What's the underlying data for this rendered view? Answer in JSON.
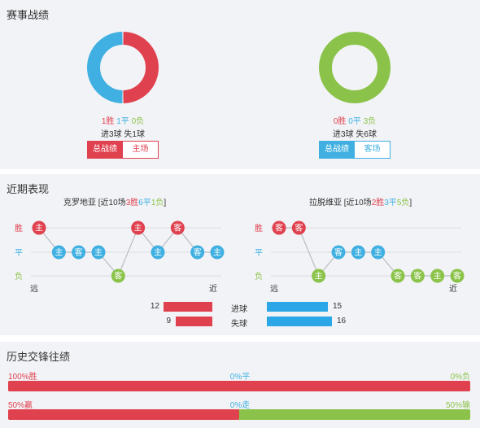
{
  "colors": {
    "red": "#e0414e",
    "blue": "#3fb0e1",
    "green": "#8bc34a",
    "bg": "#f2f3f6"
  },
  "record": {
    "title": "赛事战绩",
    "left": {
      "win": "1胜",
      "draw": "1平",
      "loss": "0负",
      "goals": "进3球 失1球",
      "tabs": [
        "总战绩",
        "主场"
      ],
      "donut": {
        "win": 1,
        "draw": 1,
        "loss": 0
      }
    },
    "right": {
      "win": "0胜",
      "draw": "0平",
      "loss": "3负",
      "goals": "进3球 失6球",
      "tabs": [
        "总战绩",
        "客场"
      ],
      "donut": {
        "win": 0,
        "draw": 0,
        "loss": 3
      }
    }
  },
  "recent": {
    "title": "近期表现",
    "left": {
      "team": "克罗地亚",
      "bracket_open": " [近10场",
      "wins": "3胜",
      "draws": "6平",
      "losses": "1负",
      "bracket_close": "]",
      "row_labels": [
        "胜",
        "平",
        "负"
      ],
      "far": "远",
      "near": "近",
      "points": [
        {
          "label": "主",
          "result": "win"
        },
        {
          "label": "主",
          "result": "draw"
        },
        {
          "label": "客",
          "result": "draw"
        },
        {
          "label": "主",
          "result": "draw"
        },
        {
          "label": "客",
          "result": "loss"
        },
        {
          "label": "主",
          "result": "win"
        },
        {
          "label": "主",
          "result": "draw"
        },
        {
          "label": "客",
          "result": "win"
        },
        {
          "label": "客",
          "result": "draw"
        },
        {
          "label": "主",
          "result": "draw"
        }
      ]
    },
    "right": {
      "team": "拉脱维亚",
      "bracket_open": " [近10场",
      "wins": "2胜",
      "draws": "3平",
      "losses": "5负",
      "bracket_close": "]",
      "row_labels": [
        "胜",
        "平",
        "负"
      ],
      "far": "远",
      "near": "近",
      "points": [
        {
          "label": "客",
          "result": "win"
        },
        {
          "label": "客",
          "result": "win"
        },
        {
          "label": "主",
          "result": "loss"
        },
        {
          "label": "客",
          "result": "draw"
        },
        {
          "label": "主",
          "result": "draw"
        },
        {
          "label": "主",
          "result": "draw"
        },
        {
          "label": "客",
          "result": "loss"
        },
        {
          "label": "客",
          "result": "loss"
        },
        {
          "label": "主",
          "result": "loss"
        },
        {
          "label": "客",
          "result": "loss"
        }
      ]
    },
    "goals": {
      "scored_label": "进球",
      "conceded_label": "失球",
      "left_scored": "12",
      "left_conceded": "9",
      "right_scored": "15",
      "right_conceded": "16",
      "left_scored_value": 12,
      "left_conceded_value": 9,
      "right_scored_value": 15,
      "right_conceded_value": 16
    }
  },
  "history": {
    "title": "历史交锋往绩",
    "row1": {
      "left": "100%胜",
      "mid": "0%平",
      "right": "0%负",
      "left_pct": 100
    },
    "row2": {
      "left": "50%赢",
      "mid": "0%走",
      "right": "50%输",
      "left_pct": 50
    }
  }
}
